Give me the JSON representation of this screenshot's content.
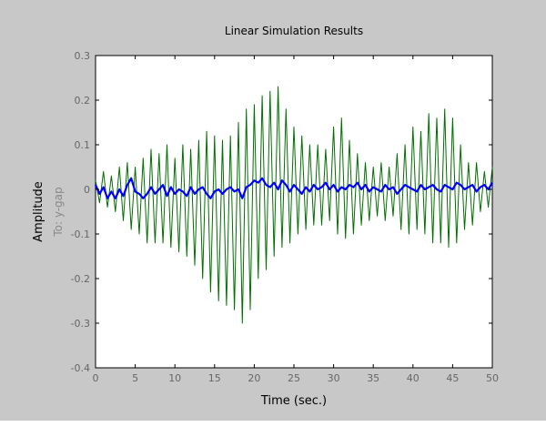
{
  "chart_data": {
    "type": "line",
    "title": "Linear Simulation Results",
    "xlabel": "Time (sec.)",
    "ylabel": "Amplitude",
    "channel_label": "To: y-gap",
    "xlim": [
      0,
      50
    ],
    "ylim": [
      -0.4,
      0.3
    ],
    "xticks": [
      "0",
      "5",
      "10",
      "15",
      "20",
      "25",
      "30",
      "35",
      "40",
      "45",
      "50"
    ],
    "yticks": [
      "0.3",
      "0.2",
      "0.1",
      "0",
      "-0.1",
      "-0.2",
      "-0.3",
      "-0.4"
    ],
    "grid": false,
    "series": [
      {
        "color": "#007000",
        "x": [
          0,
          0.5,
          1,
          1.5,
          2,
          2.5,
          3,
          3.5,
          4,
          4.5,
          5,
          5.5,
          6,
          6.5,
          7,
          7.5,
          8,
          8.5,
          9,
          9.5,
          10,
          10.5,
          11,
          11.5,
          12,
          12.5,
          13,
          13.5,
          14,
          14.5,
          15,
          15.5,
          16,
          16.5,
          17,
          17.5,
          18,
          18.5,
          19,
          19.5,
          20,
          20.5,
          21,
          21.5,
          22,
          22.5,
          23,
          23.5,
          24,
          24.5,
          25,
          25.5,
          26,
          26.5,
          27,
          27.5,
          28,
          28.5,
          29,
          29.5,
          30,
          30.5,
          31,
          31.5,
          32,
          32.5,
          33,
          33.5,
          34,
          34.5,
          35,
          35.5,
          36,
          36.5,
          37,
          37.5,
          38,
          38.5,
          39,
          39.5,
          40,
          40.5,
          41,
          41.5,
          42,
          42.5,
          43,
          43.5,
          44,
          44.5,
          45,
          45.5,
          46,
          46.5,
          47,
          47.5,
          48,
          48.5,
          49,
          49.5,
          50
        ],
        "values": [
          0.02,
          -0.03,
          0.04,
          -0.04,
          0.03,
          -0.05,
          0.05,
          -0.07,
          0.06,
          -0.09,
          0.05,
          -0.1,
          0.07,
          -0.12,
          0.09,
          -0.12,
          0.08,
          -0.12,
          0.1,
          -0.13,
          0.07,
          -0.14,
          0.1,
          -0.15,
          0.09,
          -0.17,
          0.11,
          -0.2,
          0.13,
          -0.23,
          0.12,
          -0.25,
          0.11,
          -0.26,
          0.12,
          -0.27,
          0.15,
          -0.3,
          0.18,
          -0.27,
          0.19,
          -0.2,
          0.21,
          -0.18,
          0.22,
          -0.15,
          0.23,
          -0.13,
          0.18,
          -0.12,
          0.14,
          -0.1,
          0.12,
          -0.09,
          0.1,
          -0.08,
          0.1,
          -0.08,
          0.09,
          -0.07,
          0.14,
          -0.1,
          0.16,
          -0.11,
          0.11,
          -0.1,
          0.08,
          -0.08,
          0.06,
          -0.07,
          0.05,
          -0.06,
          0.06,
          -0.07,
          0.05,
          -0.06,
          0.08,
          -0.09,
          0.1,
          -0.1,
          0.14,
          -0.09,
          0.13,
          -0.1,
          0.17,
          -0.12,
          0.16,
          -0.12,
          0.18,
          -0.13,
          0.16,
          -0.12,
          0.1,
          -0.09,
          0.06,
          -0.08,
          0.06,
          -0.05,
          0.04,
          -0.04,
          0.05
        ]
      },
      {
        "color": "#0000ff",
        "x": [
          0,
          0.5,
          1,
          1.5,
          2,
          2.5,
          3,
          3.5,
          4,
          4.5,
          5,
          5.5,
          6,
          6.5,
          7,
          7.5,
          8,
          8.5,
          9,
          9.5,
          10,
          10.5,
          11,
          11.5,
          12,
          12.5,
          13,
          13.5,
          14,
          14.5,
          15,
          15.5,
          16,
          16.5,
          17,
          17.5,
          18,
          18.5,
          19,
          19.5,
          20,
          20.5,
          21,
          21.5,
          22,
          22.5,
          23,
          23.5,
          24,
          24.5,
          25,
          25.5,
          26,
          26.5,
          27,
          27.5,
          28,
          28.5,
          29,
          29.5,
          30,
          30.5,
          31,
          31.5,
          32,
          32.5,
          33,
          33.5,
          34,
          34.5,
          35,
          35.5,
          36,
          36.5,
          37,
          37.5,
          38,
          38.5,
          39,
          39.5,
          40,
          40.5,
          41,
          41.5,
          42,
          42.5,
          43,
          43.5,
          44,
          44.5,
          45,
          45.5,
          46,
          46.5,
          47,
          47.5,
          48,
          48.5,
          49,
          49.5,
          50
        ],
        "values": [
          0.01,
          -0.01,
          0.005,
          -0.02,
          -0.005,
          -0.02,
          0.0,
          -0.015,
          0.01,
          0.025,
          -0.005,
          -0.01,
          -0.02,
          -0.01,
          0.005,
          -0.01,
          0.0,
          0.01,
          -0.015,
          0.005,
          -0.01,
          0.0,
          -0.005,
          -0.015,
          0.005,
          -0.01,
          0.0,
          0.005,
          -0.01,
          -0.02,
          -0.005,
          0.0,
          -0.01,
          0.0,
          0.005,
          -0.005,
          0.0,
          -0.02,
          0.005,
          0.01,
          0.02,
          0.015,
          0.025,
          0.01,
          0.005,
          0.015,
          0.0,
          0.02,
          0.01,
          -0.005,
          0.01,
          0.0,
          -0.01,
          0.005,
          -0.005,
          0.01,
          0.0,
          0.005,
          0.015,
          0.0,
          0.01,
          -0.005,
          0.005,
          0.0,
          0.01,
          0.005,
          0.015,
          0.0,
          0.01,
          -0.005,
          0.005,
          0.0,
          -0.005,
          0.01,
          0.0,
          0.005,
          -0.01,
          0.0,
          0.01,
          0.005,
          0.0,
          -0.005,
          0.01,
          0.0,
          0.005,
          0.01,
          0.0,
          -0.005,
          0.01,
          0.005,
          0.0,
          0.015,
          0.01,
          0.0,
          0.005,
          0.01,
          -0.005,
          0.005,
          0.01,
          0.0,
          0.015
        ]
      }
    ]
  }
}
